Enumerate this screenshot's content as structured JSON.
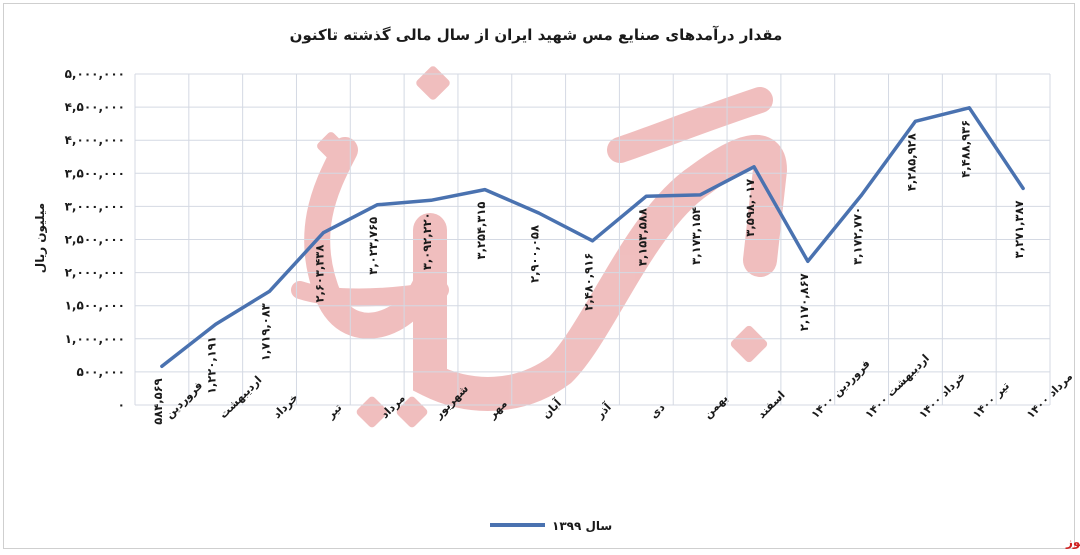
{
  "chart_data": {
    "type": "line",
    "title": "مقدار درآمدهای صنایع مس شهید ایران از سال مالی گذشته تاکنون",
    "ylabel": "میلیون ریال",
    "xlabel": "",
    "ylim": [
      0,
      5000000
    ],
    "y_ticks": [
      "۰",
      "۵۰۰,۰۰۰",
      "۱,۰۰۰,۰۰۰",
      "۱,۵۰۰,۰۰۰",
      "۲,۰۰۰,۰۰۰",
      "۲,۵۰۰,۰۰۰",
      "۳,۰۰۰,۰۰۰",
      "۳,۵۰۰,۰۰۰",
      "۴,۰۰۰,۰۰۰",
      "۴,۵۰۰,۰۰۰",
      "۵,۰۰۰,۰۰۰"
    ],
    "grid": true,
    "legend_position": "bottom",
    "categories": [
      "فروردین",
      "اردیبهشت",
      "خرداد",
      "تیر",
      "مرداد",
      "شهریور",
      "مهر",
      "آبان",
      "آذر",
      "دی",
      "بهمن",
      "اسفند",
      "فروردین ۱۴۰۰",
      "اردیبهشت ۱۴۰۰",
      "خرداد ۱۴۰۰",
      "تیر ۱۴۰۰",
      "مرداد ۱۴۰۰"
    ],
    "series": [
      {
        "name": "سال ۱۳۹۹",
        "color": "#4a72b0",
        "values": [
          584569,
          1220191,
          1719083,
          2603438,
          3023765,
          3092220,
          3254315,
          2900058,
          2480916,
          3153588,
          3173154,
          3598017,
          2170867,
          3172770,
          4285928,
          4488936,
          3271387
        ],
        "labels": [
          "۵۸۴,۵۶۹",
          "۱,۲۲۰,۱۹۱",
          "۱,۷۱۹,۰۸۳",
          "۲,۶۰۳,۴۳۸",
          "۳,۰۲۳,۷۶۵",
          "۳,۰۹۲,۲۲۰",
          "۳,۲۵۴,۳۱۵",
          "۲,۹۰۰,۰۵۸",
          "۲,۴۸۰,۹۱۶",
          "۳,۱۵۳,۵۸۸",
          "۳,۱۷۳,۱۵۴",
          "۳,۵۹۸,۰۱۷",
          "۲,۱۷۰,۸۶۷",
          "۳,۱۷۲,۷۷۰",
          "۴,۲۸۵,۹۲۸",
          "۴,۴۸۸,۹۳۶",
          "۳,۲۷۱,۳۸۷"
        ]
      }
    ]
  },
  "source": "بورس نیوز",
  "watermark_text": "بورس نیوز",
  "colors": {
    "line": "#4a72b0",
    "grid": "#d4d9e3",
    "watermark": "#e06868",
    "source": "#d02020"
  }
}
